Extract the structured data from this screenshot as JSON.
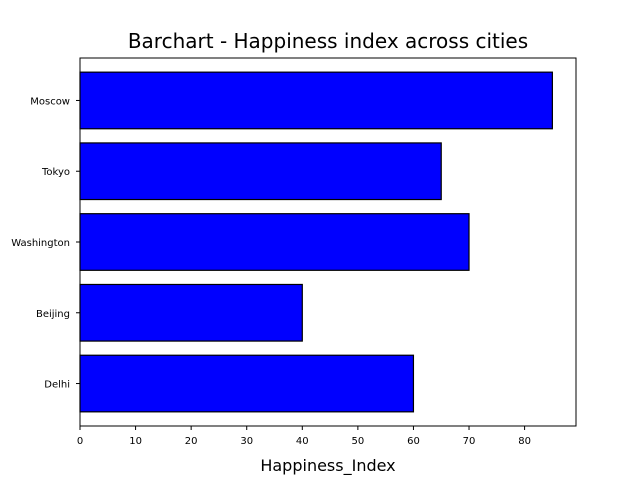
{
  "chart_data": {
    "type": "bar",
    "orientation": "horizontal",
    "title": "Barchart - Happiness index across cities",
    "xlabel": "Happiness_Index",
    "ylabel": "",
    "categories": [
      "Delhi",
      "Beijing",
      "Washington",
      "Tokyo",
      "Moscow"
    ],
    "values": [
      60,
      40,
      70,
      65,
      85
    ],
    "xlim": [
      0,
      89.25
    ],
    "xticks": [
      0,
      10,
      20,
      30,
      40,
      50,
      60,
      70,
      80
    ],
    "bar_color": "#0000ff",
    "edge_color": "#000000",
    "grid": false,
    "legend": "none"
  }
}
